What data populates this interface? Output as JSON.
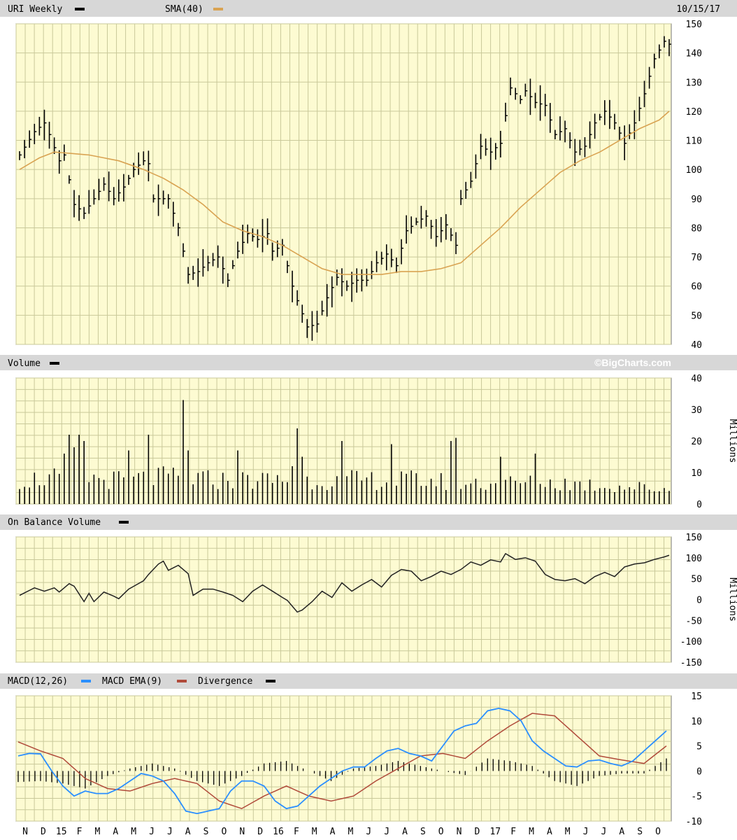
{
  "page": {
    "credit": "©BigCharts.com",
    "date": "10/15/17"
  },
  "colors": {
    "background": "#fdfbd2",
    "grid": "#c9c99a",
    "header": "#d7d7d7",
    "price": "#000000",
    "sma": "#d9a352",
    "macd": "#2b8fff",
    "macd_ema": "#b04a3a",
    "divergence": "#000000",
    "volume": "#000000",
    "obv": "#222222"
  },
  "legends": {
    "price": {
      "label": "URI Weekly",
      "sma_label": "SMA(40)"
    },
    "volume": {
      "label": "Volume"
    },
    "obv": {
      "label": "On Balance Volume"
    },
    "macd": {
      "label1": "MACD(12,26)",
      "label2": "MACD EMA(9)",
      "label3": "Divergence"
    }
  },
  "chart_data": [
    {
      "type": "bar",
      "name": "price",
      "ylim": [
        40,
        150
      ],
      "yticks": [
        40,
        50,
        60,
        70,
        80,
        90,
        100,
        110,
        120,
        130,
        140,
        150
      ],
      "x_labels": [
        "N",
        "D",
        "15",
        "F",
        "M",
        "A",
        "M",
        "J",
        "J",
        "A",
        "S",
        "O",
        "N",
        "D",
        "16",
        "F",
        "M",
        "A",
        "M",
        "J",
        "J",
        "A",
        "S",
        "O",
        "N",
        "D",
        "17",
        "F",
        "M",
        "A",
        "M",
        "J",
        "J",
        "A",
        "S",
        "O"
      ],
      "close_anchors": [
        [
          0,
          105
        ],
        [
          3,
          113
        ],
        [
          5,
          116
        ],
        [
          6,
          112
        ],
        [
          8,
          103
        ],
        [
          9,
          105
        ],
        [
          11,
          88
        ],
        [
          13,
          85
        ],
        [
          15,
          90
        ],
        [
          17,
          95
        ],
        [
          19,
          90
        ],
        [
          21,
          94
        ],
        [
          23,
          100
        ],
        [
          25,
          103
        ],
        [
          26,
          102
        ],
        [
          27,
          90
        ],
        [
          30,
          90
        ],
        [
          32,
          80
        ],
        [
          34,
          64
        ],
        [
          36,
          65
        ],
        [
          38,
          68
        ],
        [
          40,
          70
        ],
        [
          42,
          62
        ],
        [
          44,
          72
        ],
        [
          46,
          78
        ],
        [
          48,
          76
        ],
        [
          50,
          78
        ],
        [
          51,
          72
        ],
        [
          53,
          74
        ],
        [
          55,
          60
        ],
        [
          56,
          55
        ],
        [
          58,
          46
        ],
        [
          60,
          47
        ],
        [
          62,
          56
        ],
        [
          64,
          63
        ],
        [
          66,
          60
        ],
        [
          68,
          62
        ],
        [
          70,
          62
        ],
        [
          72,
          68
        ],
        [
          74,
          71
        ],
        [
          76,
          67
        ],
        [
          78,
          79
        ],
        [
          80,
          82
        ],
        [
          82,
          84
        ],
        [
          84,
          77
        ],
        [
          86,
          81
        ],
        [
          88,
          74
        ],
        [
          89,
          90
        ],
        [
          91,
          96
        ],
        [
          93,
          108
        ],
        [
          95,
          106
        ],
        [
          97,
          109
        ],
        [
          99,
          128
        ],
        [
          101,
          124
        ],
        [
          102,
          127
        ],
        [
          104,
          123
        ],
        [
          106,
          122
        ],
        [
          108,
          112
        ],
        [
          110,
          114
        ],
        [
          112,
          106
        ],
        [
          114,
          108
        ],
        [
          116,
          116
        ],
        [
          118,
          120
        ],
        [
          120,
          116
        ],
        [
          122,
          109
        ],
        [
          124,
          116
        ],
        [
          126,
          126
        ],
        [
          128,
          138
        ],
        [
          130,
          144
        ],
        [
          131,
          143
        ]
      ],
      "sma_anchors": [
        [
          0,
          100
        ],
        [
          4,
          104
        ],
        [
          7,
          106
        ],
        [
          14,
          105
        ],
        [
          20,
          103
        ],
        [
          25,
          100
        ],
        [
          29,
          97
        ],
        [
          33,
          93
        ],
        [
          37,
          88
        ],
        [
          41,
          82
        ],
        [
          45,
          79
        ],
        [
          49,
          77
        ],
        [
          53,
          74
        ],
        [
          57,
          70
        ],
        [
          61,
          66
        ],
        [
          65,
          64
        ],
        [
          69,
          64
        ],
        [
          73,
          64
        ],
        [
          77,
          65
        ],
        [
          81,
          65
        ],
        [
          85,
          66
        ],
        [
          89,
          68
        ],
        [
          93,
          74
        ],
        [
          97,
          80
        ],
        [
          101,
          87
        ],
        [
          105,
          93
        ],
        [
          109,
          99
        ],
        [
          113,
          103
        ],
        [
          117,
          106
        ],
        [
          121,
          110
        ],
        [
          125,
          114
        ],
        [
          129,
          117
        ],
        [
          131,
          120
        ]
      ]
    },
    {
      "type": "bar",
      "name": "volume",
      "ylabel": "Millions",
      "ylim": [
        0,
        40
      ],
      "yticks": [
        0,
        10,
        20,
        30,
        40
      ],
      "baseline_anchors": [
        [
          0,
          8
        ],
        [
          10,
          9
        ],
        [
          20,
          8
        ],
        [
          30,
          9
        ],
        [
          40,
          8
        ],
        [
          50,
          8
        ],
        [
          60,
          8
        ],
        [
          70,
          8
        ],
        [
          80,
          8
        ],
        [
          90,
          7
        ],
        [
          100,
          7
        ],
        [
          110,
          7
        ],
        [
          120,
          6
        ],
        [
          131,
          5
        ]
      ],
      "spikes": [
        [
          9,
          16
        ],
        [
          10,
          22
        ],
        [
          11,
          18
        ],
        [
          12,
          22
        ],
        [
          13,
          20
        ],
        [
          22,
          17
        ],
        [
          26,
          22
        ],
        [
          33,
          33
        ],
        [
          34,
          17
        ],
        [
          44,
          17
        ],
        [
          55,
          12
        ],
        [
          56,
          24
        ],
        [
          57,
          15
        ],
        [
          65,
          20
        ],
        [
          75,
          19
        ],
        [
          87,
          20
        ],
        [
          88,
          21
        ],
        [
          97,
          15
        ],
        [
          104,
          16
        ]
      ]
    },
    {
      "type": "line",
      "name": "obv",
      "ylabel": "Millions",
      "ylim": [
        -150,
        150
      ],
      "yticks": [
        150,
        100,
        50,
        0,
        -50,
        -100,
        -150
      ],
      "anchors": [
        [
          0,
          10
        ],
        [
          3,
          28
        ],
        [
          5,
          20
        ],
        [
          7,
          28
        ],
        [
          8,
          18
        ],
        [
          10,
          38
        ],
        [
          11,
          32
        ],
        [
          13,
          -5
        ],
        [
          14,
          15
        ],
        [
          15,
          -5
        ],
        [
          17,
          18
        ],
        [
          19,
          8
        ],
        [
          20,
          2
        ],
        [
          22,
          25
        ],
        [
          25,
          45
        ],
        [
          26,
          60
        ],
        [
          28,
          85
        ],
        [
          29,
          92
        ],
        [
          30,
          70
        ],
        [
          32,
          82
        ],
        [
          34,
          62
        ],
        [
          35,
          10
        ],
        [
          37,
          25
        ],
        [
          39,
          25
        ],
        [
          41,
          18
        ],
        [
          43,
          10
        ],
        [
          45,
          -5
        ],
        [
          47,
          20
        ],
        [
          49,
          35
        ],
        [
          51,
          20
        ],
        [
          53,
          5
        ],
        [
          54,
          -2
        ],
        [
          56,
          -30
        ],
        [
          57,
          -25
        ],
        [
          59,
          -5
        ],
        [
          61,
          20
        ],
        [
          63,
          5
        ],
        [
          65,
          40
        ],
        [
          67,
          20
        ],
        [
          69,
          35
        ],
        [
          71,
          48
        ],
        [
          73,
          30
        ],
        [
          75,
          58
        ],
        [
          77,
          72
        ],
        [
          79,
          68
        ],
        [
          81,
          45
        ],
        [
          83,
          55
        ],
        [
          85,
          68
        ],
        [
          87,
          60
        ],
        [
          89,
          72
        ],
        [
          91,
          90
        ],
        [
          93,
          82
        ],
        [
          95,
          95
        ],
        [
          97,
          90
        ],
        [
          98,
          110
        ],
        [
          100,
          96
        ],
        [
          102,
          100
        ],
        [
          104,
          92
        ],
        [
          106,
          60
        ],
        [
          108,
          48
        ],
        [
          110,
          45
        ],
        [
          112,
          50
        ],
        [
          114,
          38
        ],
        [
          116,
          55
        ],
        [
          118,
          65
        ],
        [
          120,
          55
        ],
        [
          122,
          78
        ],
        [
          124,
          85
        ],
        [
          126,
          88
        ],
        [
          128,
          96
        ],
        [
          130,
          102
        ],
        [
          131,
          106
        ]
      ]
    },
    {
      "type": "line",
      "name": "macd",
      "ylim": [
        -10,
        15
      ],
      "yticks": [
        15,
        10,
        5,
        0,
        -5,
        -10
      ],
      "macd_anchors": [
        [
          0,
          3
        ],
        [
          2,
          3.5
        ],
        [
          4,
          3.4
        ],
        [
          6,
          0
        ],
        [
          8,
          -3
        ],
        [
          10,
          -5
        ],
        [
          12,
          -4
        ],
        [
          14,
          -4.5
        ],
        [
          16,
          -4.5
        ],
        [
          18,
          -3.5
        ],
        [
          20,
          -2
        ],
        [
          22,
          -0.5
        ],
        [
          24,
          -1
        ],
        [
          26,
          -2
        ],
        [
          28,
          -4.5
        ],
        [
          30,
          -8
        ],
        [
          32,
          -8.5
        ],
        [
          34,
          -8
        ],
        [
          36,
          -7.5
        ],
        [
          38,
          -4
        ],
        [
          40,
          -2
        ],
        [
          42,
          -2
        ],
        [
          44,
          -3
        ],
        [
          46,
          -6
        ],
        [
          48,
          -7.5
        ],
        [
          50,
          -7
        ],
        [
          52,
          -5
        ],
        [
          54,
          -3
        ],
        [
          56,
          -1.5
        ],
        [
          58,
          0
        ],
        [
          60,
          0.8
        ],
        [
          62,
          0.8
        ],
        [
          64,
          2.5
        ],
        [
          66,
          4
        ],
        [
          68,
          4.5
        ],
        [
          70,
          3.5
        ],
        [
          72,
          3
        ],
        [
          74,
          2
        ],
        [
          76,
          5
        ],
        [
          78,
          8
        ],
        [
          80,
          9
        ],
        [
          82,
          9.5
        ],
        [
          84,
          12
        ],
        [
          86,
          12.5
        ],
        [
          88,
          12
        ],
        [
          90,
          10
        ],
        [
          92,
          6
        ],
        [
          94,
          4
        ],
        [
          96,
          2.5
        ],
        [
          98,
          1
        ],
        [
          100,
          0.8
        ],
        [
          102,
          2
        ],
        [
          104,
          2.2
        ],
        [
          106,
          1.5
        ],
        [
          108,
          1
        ],
        [
          110,
          2
        ],
        [
          112,
          4
        ],
        [
          114,
          6
        ],
        [
          116,
          8
        ]
      ],
      "ema_anchors": [
        [
          0,
          5.8
        ],
        [
          4,
          4
        ],
        [
          8,
          2.5
        ],
        [
          12,
          -1.5
        ],
        [
          16,
          -3.5
        ],
        [
          20,
          -4
        ],
        [
          24,
          -2.5
        ],
        [
          28,
          -1.5
        ],
        [
          32,
          -2.5
        ],
        [
          36,
          -6
        ],
        [
          40,
          -7.5
        ],
        [
          44,
          -5
        ],
        [
          48,
          -3
        ],
        [
          52,
          -5
        ],
        [
          56,
          -6
        ],
        [
          60,
          -5
        ],
        [
          64,
          -2
        ],
        [
          68,
          0.5
        ],
        [
          72,
          3
        ],
        [
          76,
          3.5
        ],
        [
          80,
          2.5
        ],
        [
          84,
          6
        ],
        [
          88,
          9
        ],
        [
          92,
          11.5
        ],
        [
          96,
          11
        ],
        [
          100,
          7
        ],
        [
          104,
          3
        ],
        [
          108,
          2.2
        ],
        [
          112,
          1.5
        ],
        [
          116,
          5
        ]
      ],
      "divergence_anchors": [
        [
          0,
          -2.2
        ],
        [
          4,
          -2
        ],
        [
          8,
          -2.5
        ],
        [
          12,
          -3.5
        ],
        [
          16,
          -1
        ],
        [
          20,
          0.5
        ],
        [
          24,
          1.5
        ],
        [
          28,
          0.5
        ],
        [
          32,
          -2
        ],
        [
          36,
          -3
        ],
        [
          40,
          -1
        ],
        [
          44,
          1.5
        ],
        [
          48,
          2
        ],
        [
          52,
          0
        ],
        [
          56,
          -2
        ],
        [
          60,
          0.5
        ],
        [
          64,
          1
        ],
        [
          68,
          2
        ],
        [
          72,
          1
        ],
        [
          76,
          0
        ],
        [
          80,
          -0.8
        ],
        [
          84,
          2.5
        ],
        [
          88,
          2
        ],
        [
          92,
          1
        ],
        [
          96,
          -2
        ],
        [
          100,
          -3
        ],
        [
          104,
          -1
        ],
        [
          108,
          -0.5
        ],
        [
          112,
          -0.5
        ],
        [
          116,
          2.5
        ]
      ]
    }
  ]
}
